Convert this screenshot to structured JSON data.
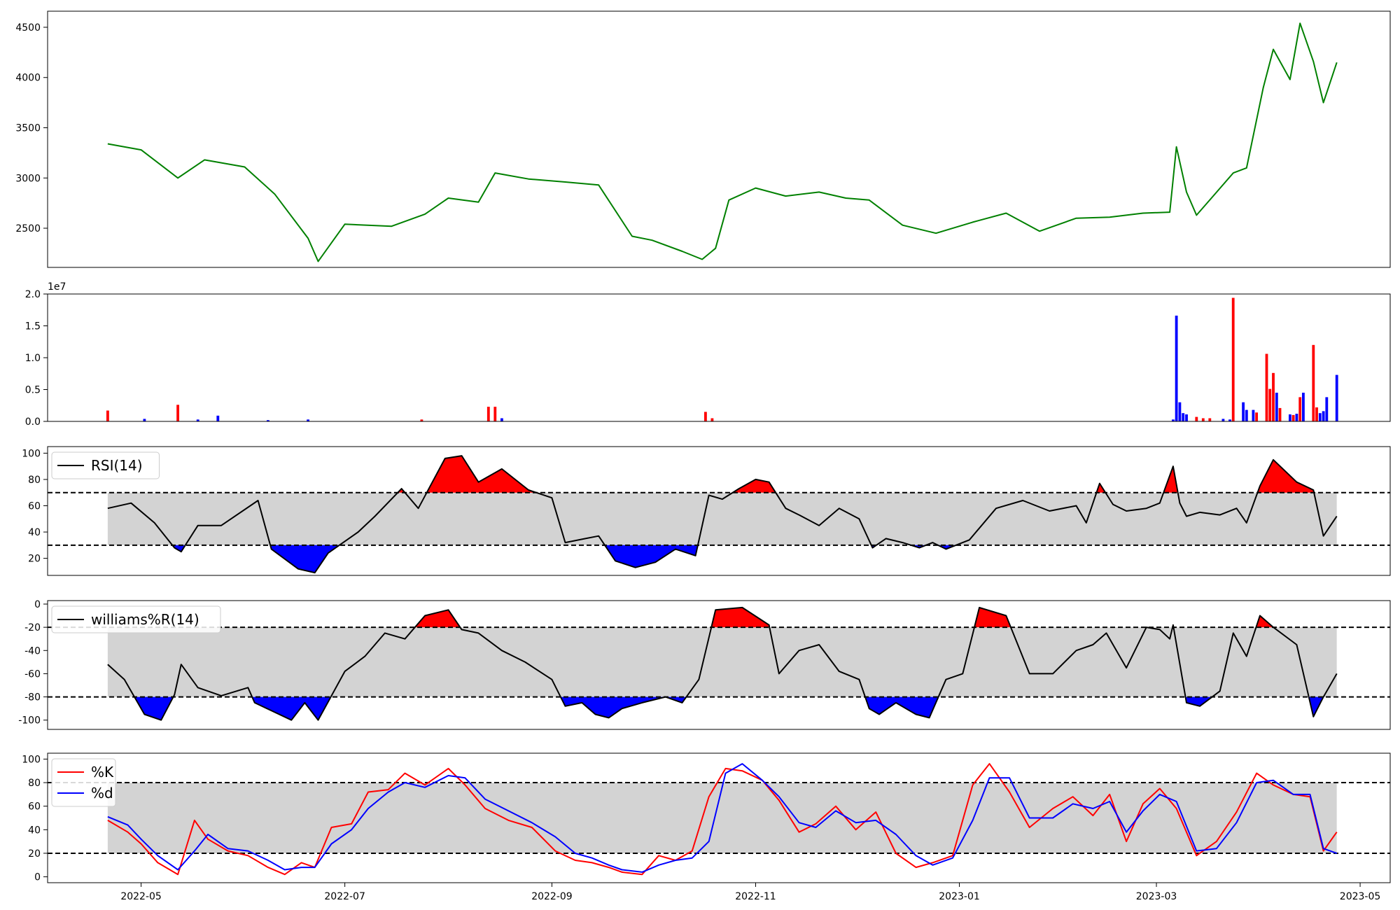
{
  "chart_data": [
    {
      "type": "line",
      "panel": "price",
      "color": "#008000",
      "ylim": [
        2110,
        4660
      ],
      "yticks": [
        2500,
        3000,
        3500,
        4000,
        4500
      ],
      "x": [
        "2022-04-21",
        "2022-05-01",
        "2022-05-12",
        "2022-05-20",
        "2022-06-01",
        "2022-06-10",
        "2022-06-20",
        "2022-06-23",
        "2022-07-01",
        "2022-07-15",
        "2022-07-25",
        "2022-08-01",
        "2022-08-10",
        "2022-08-15",
        "2022-08-25",
        "2022-09-05",
        "2022-09-15",
        "2022-09-25",
        "2022-10-01",
        "2022-10-10",
        "2022-10-16",
        "2022-10-20",
        "2022-10-24",
        "2022-11-01",
        "2022-11-10",
        "2022-11-20",
        "2022-11-28",
        "2022-12-05",
        "2022-12-15",
        "2022-12-25",
        "2023-01-05",
        "2023-01-15",
        "2023-01-25",
        "2023-02-05",
        "2023-02-15",
        "2023-02-25",
        "2023-03-05",
        "2023-03-07",
        "2023-03-10",
        "2023-03-13",
        "2023-03-18",
        "2023-03-24",
        "2023-03-28",
        "2023-04-02",
        "2023-04-05",
        "2023-04-10",
        "2023-04-13",
        "2023-04-17",
        "2023-04-20",
        "2023-04-24"
      ],
      "y": [
        3340,
        3280,
        3000,
        3180,
        3110,
        2840,
        2400,
        2170,
        2540,
        2520,
        2640,
        2800,
        2760,
        3050,
        2990,
        2960,
        2930,
        2420,
        2380,
        2270,
        2190,
        2300,
        2780,
        2900,
        2820,
        2860,
        2800,
        2780,
        2530,
        2450,
        2560,
        2650,
        2470,
        2600,
        2610,
        2650,
        2660,
        3310,
        2860,
        2630,
        2820,
        3050,
        3100,
        3900,
        4280,
        3980,
        4540,
        4160,
        3750,
        4150
      ]
    },
    {
      "type": "bar",
      "panel": "volume",
      "ylim": [
        0,
        20000000
      ],
      "yticks": [
        0,
        5000000,
        10000000,
        15000000,
        20000000
      ],
      "ytick_labels": [
        "0.0",
        "0.5",
        "1.0",
        "1.5",
        "2.0"
      ],
      "offset_label": "1e7",
      "colors": {
        "up": "#ff0000",
        "down": "#0000ff"
      },
      "x": [
        "2022-04-21",
        "2022-05-02",
        "2022-05-12",
        "2022-05-18",
        "2022-05-24",
        "2022-06-08",
        "2022-06-20",
        "2022-07-24",
        "2022-08-13",
        "2022-08-15",
        "2022-08-17",
        "2022-10-17",
        "2022-10-19",
        "2023-03-06",
        "2023-03-07",
        "2023-03-08",
        "2023-03-09",
        "2023-03-10",
        "2023-03-13",
        "2023-03-15",
        "2023-03-17",
        "2023-03-21",
        "2023-03-23",
        "2023-03-24",
        "2023-03-27",
        "2023-03-28",
        "2023-03-30",
        "2023-03-31",
        "2023-04-03",
        "2023-04-04",
        "2023-04-05",
        "2023-04-06",
        "2023-04-07",
        "2023-04-10",
        "2023-04-11",
        "2023-04-12",
        "2023-04-13",
        "2023-04-14",
        "2023-04-17",
        "2023-04-18",
        "2023-04-19",
        "2023-04-20",
        "2023-04-21",
        "2023-04-24"
      ],
      "values": [
        1700000,
        400000,
        2600000,
        300000,
        900000,
        200000,
        300000,
        300000,
        2300000,
        2300000,
        500000,
        1500000,
        500000,
        300000,
        16600000,
        3000000,
        1300000,
        1100000,
        700000,
        500000,
        500000,
        400000,
        300000,
        19400000,
        3000000,
        1800000,
        1800000,
        1400000,
        10600000,
        5100000,
        7600000,
        4500000,
        2100000,
        1100000,
        1000000,
        1200000,
        3800000,
        4500000,
        12000000,
        2200000,
        1300000,
        1600000,
        3800000,
        7300000
      ],
      "directions": [
        "up",
        "down",
        "up",
        "down",
        "down",
        "down",
        "down",
        "up",
        "up",
        "up",
        "down",
        "up",
        "up",
        "down",
        "down",
        "down",
        "down",
        "down",
        "up",
        "up",
        "up",
        "down",
        "down",
        "up",
        "down",
        "down",
        "down",
        "up",
        "up",
        "up",
        "up",
        "down",
        "up",
        "down",
        "up",
        "down",
        "up",
        "down",
        "up",
        "up",
        "down",
        "down",
        "down",
        "down"
      ]
    },
    {
      "type": "line",
      "panel": "rsi",
      "legend": "RSI(14)",
      "legend_position": "upper-left",
      "color": "#000000",
      "ylim": [
        7,
        105
      ],
      "yticks": [
        20,
        40,
        60,
        80,
        100
      ],
      "levels": [
        30,
        70
      ],
      "fills": {
        "band": "#d3d3d3",
        "over": "#ff0000",
        "under": "#0000ff"
      },
      "x": [
        "2022-04-21",
        "2022-04-28",
        "2022-05-05",
        "2022-05-11",
        "2022-05-13",
        "2022-05-18",
        "2022-05-25",
        "2022-06-05",
        "2022-06-09",
        "2022-06-17",
        "2022-06-22",
        "2022-06-26",
        "2022-07-05",
        "2022-07-10",
        "2022-07-18",
        "2022-07-23",
        "2022-07-31",
        "2022-08-05",
        "2022-08-10",
        "2022-08-17",
        "2022-08-25",
        "2022-09-01",
        "2022-09-05",
        "2022-09-11",
        "2022-09-15",
        "2022-09-20",
        "2022-09-26",
        "2022-10-02",
        "2022-10-08",
        "2022-10-14",
        "2022-10-18",
        "2022-10-22",
        "2022-10-27",
        "2022-11-01",
        "2022-11-05",
        "2022-11-10",
        "2022-11-14",
        "2022-11-20",
        "2022-11-26",
        "2022-12-02",
        "2022-12-06",
        "2022-12-10",
        "2022-12-15",
        "2022-12-20",
        "2022-12-24",
        "2022-12-28",
        "2023-01-04",
        "2023-01-12",
        "2023-01-20",
        "2023-01-28",
        "2023-02-05",
        "2023-02-08",
        "2023-02-12",
        "2023-02-16",
        "2023-02-20",
        "2023-02-26",
        "2023-03-02",
        "2023-03-06",
        "2023-03-08",
        "2023-03-10",
        "2023-03-14",
        "2023-03-20",
        "2023-03-25",
        "2023-03-28",
        "2023-04-01",
        "2023-04-05",
        "2023-04-12",
        "2023-04-17",
        "2023-04-20",
        "2023-04-24"
      ],
      "y": [
        58,
        62,
        47,
        28,
        25,
        45,
        45,
        64,
        27,
        12,
        9,
        24,
        40,
        52,
        73,
        58,
        96,
        98,
        78,
        88,
        72,
        66,
        32,
        35,
        37,
        18,
        13,
        17,
        27,
        22,
        68,
        65,
        73,
        80,
        78,
        58,
        53,
        45,
        58,
        50,
        28,
        35,
        32,
        28,
        32,
        27,
        34,
        58,
        64,
        56,
        60,
        47,
        77,
        61,
        56,
        58,
        62,
        90,
        62,
        52,
        55,
        53,
        58,
        47,
        75,
        95,
        78,
        72,
        37,
        52
      ]
    },
    {
      "type": "line",
      "panel": "williams",
      "legend": "williams%R(14)",
      "legend_position": "upper-left",
      "color": "#000000",
      "ylim": [
        -108,
        3
      ],
      "yticks": [
        -100,
        -80,
        -60,
        -40,
        -20,
        0
      ],
      "levels": [
        -80,
        -20
      ],
      "fills": {
        "band": "#d3d3d3",
        "over": "#ff0000",
        "under": "#0000ff"
      },
      "x": [
        "2022-04-21",
        "2022-04-26",
        "2022-05-02",
        "2022-05-07",
        "2022-05-11",
        "2022-05-13",
        "2022-05-18",
        "2022-05-25",
        "2022-06-02",
        "2022-06-04",
        "2022-06-15",
        "2022-06-19",
        "2022-06-23",
        "2022-07-01",
        "2022-07-07",
        "2022-07-13",
        "2022-07-19",
        "2022-07-25",
        "2022-08-01",
        "2022-08-05",
        "2022-08-10",
        "2022-08-17",
        "2022-08-24",
        "2022-09-01",
        "2022-09-05",
        "2022-09-10",
        "2022-09-14",
        "2022-09-18",
        "2022-09-22",
        "2022-09-28",
        "2022-10-05",
        "2022-10-10",
        "2022-10-15",
        "2022-10-20",
        "2022-10-28",
        "2022-11-05",
        "2022-11-08",
        "2022-11-14",
        "2022-11-20",
        "2022-11-26",
        "2022-12-02",
        "2022-12-05",
        "2022-12-08",
        "2022-12-13",
        "2022-12-19",
        "2022-12-23",
        "2022-12-28",
        "2023-01-02",
        "2023-01-07",
        "2023-01-15",
        "2023-01-22",
        "2023-01-29",
        "2023-02-05",
        "2023-02-10",
        "2023-02-14",
        "2023-02-20",
        "2023-02-26",
        "2023-03-02",
        "2023-03-05",
        "2023-03-06",
        "2023-03-10",
        "2023-03-14",
        "2023-03-20",
        "2023-03-24",
        "2023-03-28",
        "2023-04-01",
        "2023-04-05",
        "2023-04-12",
        "2023-04-17",
        "2023-04-20",
        "2023-04-24"
      ],
      "y": [
        -52,
        -65,
        -95,
        -100,
        -78,
        -52,
        -72,
        -79,
        -72,
        -85,
        -100,
        -85,
        -100,
        -58,
        -45,
        -25,
        -30,
        -10,
        -5,
        -22,
        -25,
        -40,
        -50,
        -65,
        -88,
        -85,
        -95,
        -98,
        -90,
        -85,
        -80,
        -85,
        -65,
        -5,
        -3,
        -18,
        -60,
        -40,
        -35,
        -58,
        -65,
        -90,
        -95,
        -85,
        -95,
        -98,
        -65,
        -60,
        -3,
        -10,
        -60,
        -60,
        -40,
        -35,
        -25,
        -55,
        -20,
        -22,
        -30,
        -18,
        -85,
        -88,
        -75,
        -25,
        -45,
        -10,
        -20,
        -35,
        -97,
        -80,
        -60
      ]
    },
    {
      "type": "line",
      "panel": "stochastic",
      "legend_position": "upper-left",
      "ylim": [
        -5,
        105
      ],
      "yticks": [
        0,
        20,
        40,
        60,
        80,
        100
      ],
      "levels": [
        20,
        80
      ],
      "fills": {
        "band": "#d3d3d3"
      },
      "x": [
        "2022-04-21",
        "2022-04-27",
        "2022-05-01",
        "2022-05-06",
        "2022-05-12",
        "2022-05-17",
        "2022-05-21",
        "2022-05-27",
        "2022-06-02",
        "2022-06-08",
        "2022-06-13",
        "2022-06-18",
        "2022-06-22",
        "2022-06-27",
        "2022-07-03",
        "2022-07-08",
        "2022-07-14",
        "2022-07-19",
        "2022-07-25",
        "2022-08-01",
        "2022-08-06",
        "2022-08-12",
        "2022-08-19",
        "2022-08-26",
        "2022-09-02",
        "2022-09-08",
        "2022-09-13",
        "2022-09-18",
        "2022-09-22",
        "2022-09-28",
        "2022-10-03",
        "2022-10-08",
        "2022-10-13",
        "2022-10-18",
        "2022-10-23",
        "2022-10-28",
        "2022-11-03",
        "2022-11-08",
        "2022-11-14",
        "2022-11-19",
        "2022-11-25",
        "2022-12-01",
        "2022-12-07",
        "2022-12-13",
        "2022-12-19",
        "2022-12-24",
        "2022-12-30",
        "2023-01-05",
        "2023-01-10",
        "2023-01-16",
        "2023-01-22",
        "2023-01-29",
        "2023-02-04",
        "2023-02-10",
        "2023-02-15",
        "2023-02-20",
        "2023-02-25",
        "2023-03-02",
        "2023-03-07",
        "2023-03-13",
        "2023-03-19",
        "2023-03-25",
        "2023-03-31",
        "2023-04-05",
        "2023-04-11",
        "2023-04-16",
        "2023-04-20",
        "2023-04-24"
      ],
      "series": [
        {
          "name": "%K",
          "color": "#ff0000",
          "y": [
            48,
            38,
            28,
            12,
            2,
            48,
            32,
            22,
            18,
            8,
            2,
            12,
            8,
            42,
            45,
            72,
            74,
            88,
            78,
            92,
            78,
            58,
            48,
            42,
            22,
            14,
            12,
            8,
            4,
            2,
            18,
            14,
            22,
            68,
            92,
            90,
            82,
            65,
            38,
            45,
            60,
            40,
            55,
            20,
            8,
            12,
            18,
            78,
            96,
            72,
            42,
            58,
            68,
            52,
            70,
            30,
            62,
            75,
            58,
            18,
            30,
            55,
            88,
            78,
            70,
            68,
            22,
            38
          ]
        },
        {
          "name": "%d",
          "color": "#0000ff",
          "y": [
            51,
            44,
            32,
            18,
            6,
            22,
            36,
            24,
            22,
            14,
            6,
            8,
            8,
            28,
            40,
            58,
            72,
            80,
            76,
            86,
            84,
            66,
            56,
            46,
            34,
            20,
            16,
            10,
            6,
            4,
            10,
            14,
            16,
            30,
            88,
            96,
            82,
            68,
            46,
            42,
            56,
            46,
            48,
            36,
            18,
            10,
            16,
            48,
            84,
            84,
            50,
            50,
            62,
            58,
            64,
            38,
            56,
            70,
            64,
            22,
            24,
            46,
            80,
            82,
            70,
            70,
            24,
            20
          ]
        }
      ]
    }
  ],
  "x_axis": {
    "domain": [
      "2022-04-03",
      "2023-05-10"
    ],
    "ticks": [
      "2022-05",
      "2022-07",
      "2022-09",
      "2022-11",
      "2023-01",
      "2023-03",
      "2023-05"
    ],
    "tick_dates": [
      "2022-05-01",
      "2022-07-01",
      "2022-09-01",
      "2022-11-01",
      "2023-01-01",
      "2023-03-01",
      "2023-05-01"
    ]
  }
}
